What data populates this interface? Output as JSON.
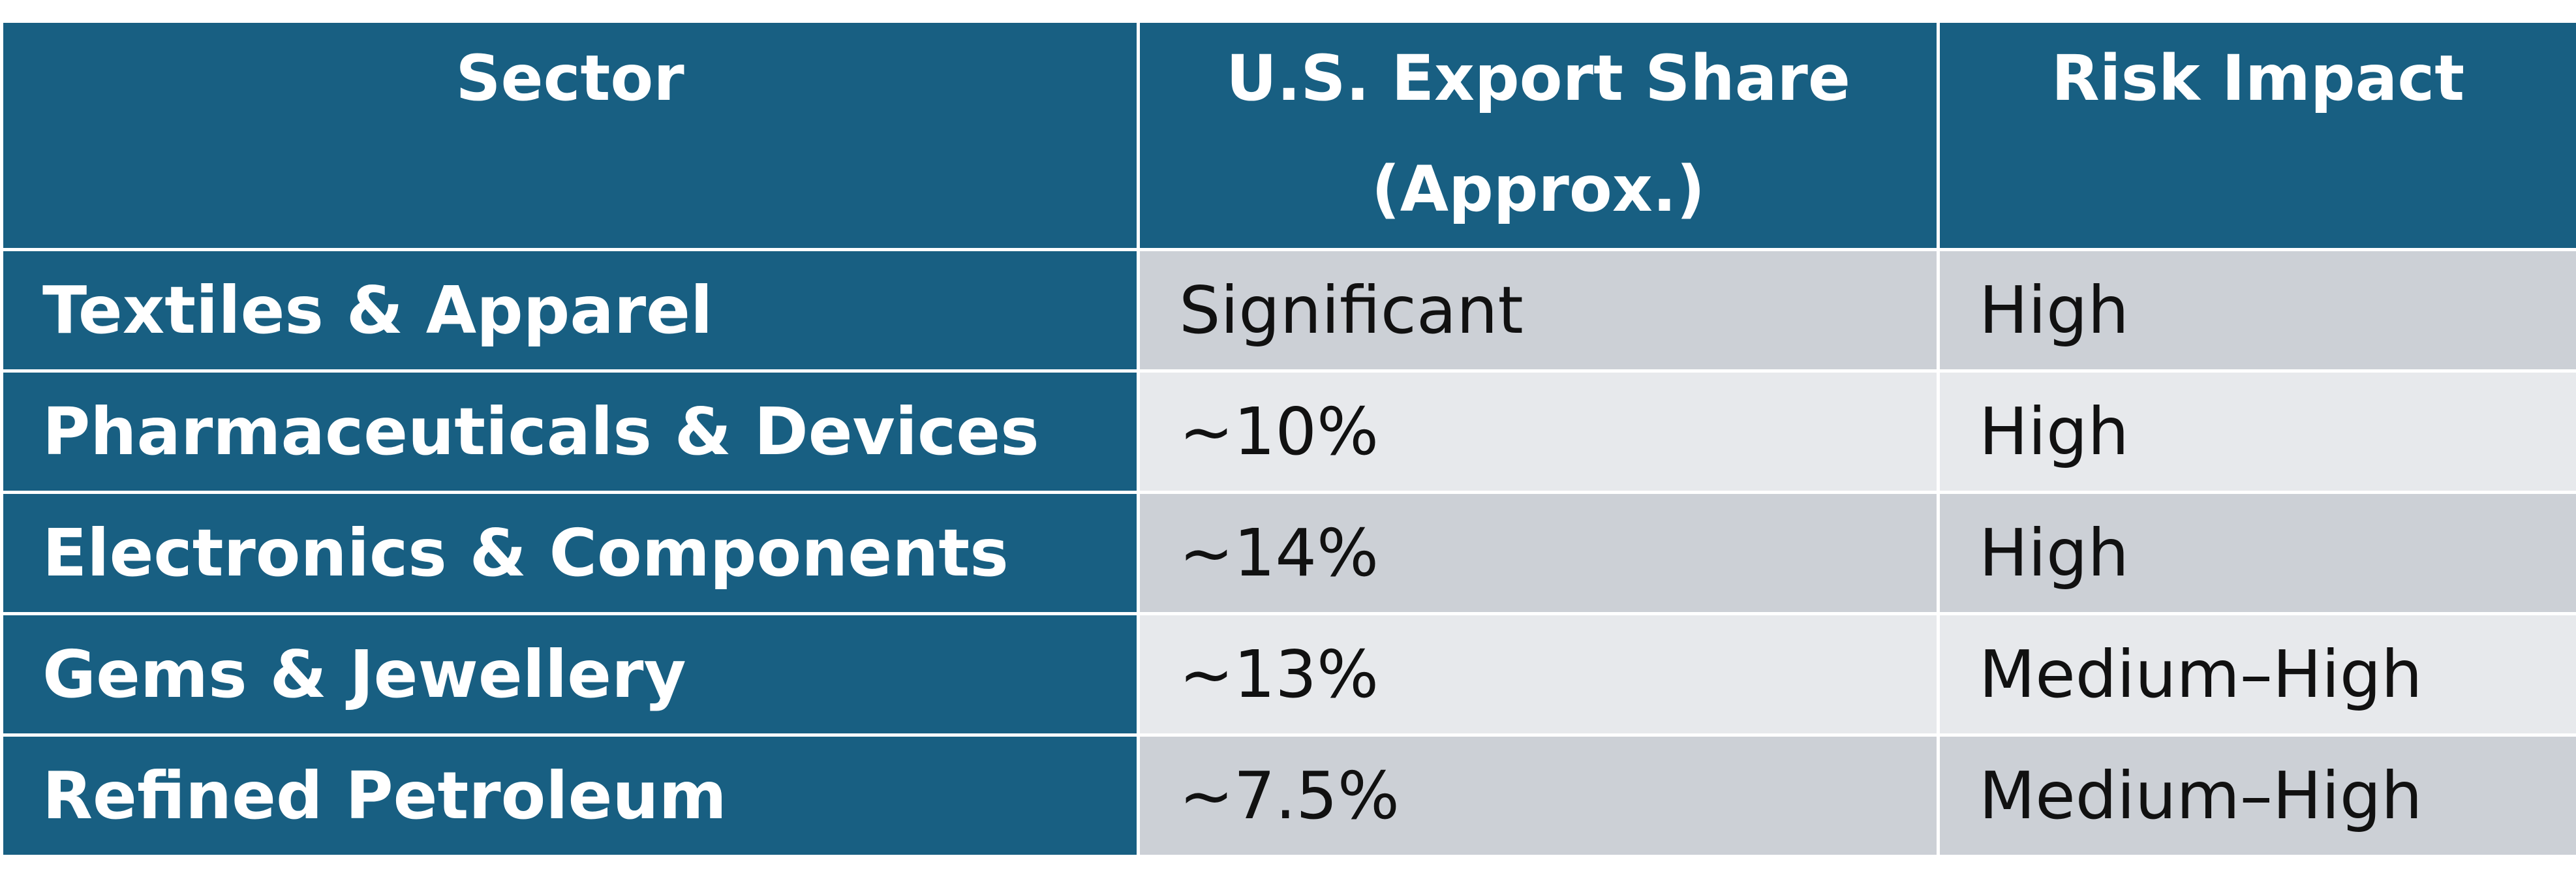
{
  "table": {
    "headers": {
      "sector": "Sector",
      "export_share_line1": "U.S. Export Share",
      "export_share_line2": "(Approx.)",
      "risk": "Risk Impact"
    },
    "rows": [
      {
        "sector": "Textiles & Apparel",
        "share": "Significant",
        "risk": "High"
      },
      {
        "sector": "Pharmaceuticals & Devices",
        "share": "~10%",
        "risk": "High"
      },
      {
        "sector": "Electronics & Components",
        "share": "~14%",
        "risk": "High"
      },
      {
        "sector": "Gems & Jewellery",
        "share": "~13%",
        "risk": "Medium–High"
      },
      {
        "sector": "Refined Petroleum",
        "share": "~7.5%",
        "risk": "Medium–High"
      }
    ]
  },
  "colors": {
    "header_bg": "#185f82",
    "sector_bg": "#185f82",
    "row_dark": "#ccd0d6",
    "row_light": "#e7e9ec",
    "border": "#ffffff"
  }
}
